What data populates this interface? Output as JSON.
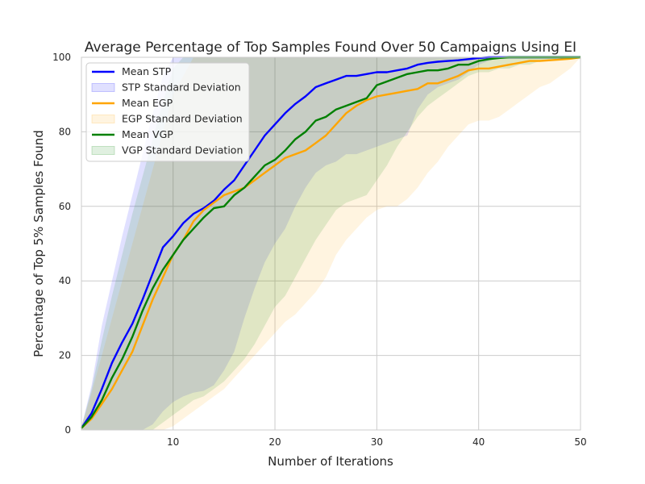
{
  "chart_data": {
    "type": "line",
    "title": "Average Percentage of Top Samples Found Over 50 Campaigns Using EI",
    "xlabel": "Number of Iterations",
    "ylabel": "Percentage of Top 5% Samples Found",
    "xlim": [
      1,
      50
    ],
    "ylim": [
      0,
      100
    ],
    "xticks": [
      10,
      20,
      30,
      40,
      50
    ],
    "yticks": [
      0,
      20,
      40,
      60,
      80,
      100
    ],
    "grid": true,
    "legend_position": "top-left",
    "x": [
      1,
      2,
      3,
      4,
      5,
      6,
      7,
      8,
      9,
      10,
      11,
      12,
      13,
      14,
      15,
      16,
      17,
      18,
      19,
      20,
      21,
      22,
      23,
      24,
      25,
      26,
      27,
      28,
      29,
      30,
      31,
      32,
      33,
      34,
      35,
      36,
      37,
      38,
      39,
      40,
      41,
      42,
      43,
      44,
      45,
      46,
      47,
      48,
      49,
      50
    ],
    "series": [
      {
        "name": "Mean STP",
        "band_name": "STP Standard Deviation",
        "color": "#0000ff",
        "values": [
          0.5,
          4.5,
          11,
          18,
          23.5,
          28.5,
          35,
          42,
          49,
          52,
          55.5,
          58,
          59.5,
          61.5,
          64.5,
          67,
          71,
          75,
          79,
          82,
          85,
          87.5,
          89.5,
          92,
          93,
          94,
          95,
          95,
          95.5,
          96,
          96,
          96.5,
          97,
          98,
          98.5,
          98.8,
          99,
          99.2,
          99.5,
          99.8,
          100,
          100,
          100,
          100,
          100,
          100,
          100,
          100,
          100,
          100
        ],
        "lower": [
          0,
          0,
          0,
          0,
          0,
          0,
          0,
          1.5,
          5,
          7.5,
          9,
          10,
          10.5,
          12,
          16,
          21,
          30,
          38,
          45,
          50,
          54,
          60,
          65,
          69,
          71,
          72,
          74,
          74,
          75,
          76,
          77,
          78,
          79,
          86,
          90,
          92,
          93,
          94,
          96,
          98,
          99,
          100,
          100,
          100,
          100,
          100,
          100,
          100,
          100,
          100
        ],
        "upper": [
          0.8,
          12,
          28,
          40,
          52,
          63,
          74,
          85,
          95,
          100,
          100,
          100,
          100,
          100,
          100,
          100,
          100,
          100,
          100,
          100,
          100,
          100,
          100,
          100,
          100,
          100,
          100,
          100,
          100,
          100,
          100,
          100,
          100,
          100,
          100,
          100,
          100,
          100,
          100,
          100,
          100,
          100,
          100,
          100,
          100,
          100,
          100,
          100,
          100,
          100
        ]
      },
      {
        "name": "Mean EGP",
        "band_name": "EGP Standard Deviation",
        "color": "#ffa500",
        "values": [
          0.5,
          3,
          7,
          11,
          16,
          21,
          28,
          35,
          41,
          47,
          51,
          56,
          59,
          61,
          63,
          64,
          65,
          67,
          69,
          71,
          73,
          74,
          75,
          77,
          79,
          82,
          85,
          87,
          88.5,
          89.5,
          90,
          90.5,
          91,
          91.5,
          93,
          93,
          94,
          95,
          96.5,
          97,
          97,
          97.5,
          98,
          98.5,
          99,
          99,
          99.2,
          99.4,
          99.6,
          100
        ],
        "lower": [
          0,
          0,
          0,
          0,
          0,
          0,
          0,
          0,
          0,
          1,
          3,
          5,
          7,
          9,
          11,
          14,
          17,
          20,
          23,
          26,
          29,
          31,
          34,
          37,
          41,
          47,
          51,
          54,
          57,
          59,
          60,
          60,
          62,
          65,
          69,
          72,
          76,
          79,
          82,
          83,
          83,
          84,
          86,
          88,
          90,
          92,
          93,
          95,
          97,
          100
        ],
        "upper": [
          0.8,
          10,
          20,
          30,
          40,
          50,
          60,
          70,
          80,
          90,
          95,
          100,
          100,
          100,
          100,
          100,
          100,
          100,
          100,
          100,
          100,
          100,
          100,
          100,
          100,
          100,
          100,
          100,
          100,
          100,
          100,
          100,
          100,
          100,
          100,
          100,
          100,
          100,
          100,
          100,
          100,
          100,
          100,
          100,
          100,
          100,
          100,
          100,
          100,
          100
        ]
      },
      {
        "name": "Mean VGP",
        "band_name": "VGP Standard Deviation",
        "color": "#008000",
        "values": [
          0.5,
          3.5,
          8,
          14,
          19,
          25,
          32,
          38,
          43,
          47,
          51,
          54,
          57,
          59.5,
          60,
          63,
          65,
          68,
          71,
          72.5,
          75,
          78,
          80,
          83,
          84,
          86,
          87,
          88,
          89,
          92.5,
          93.5,
          94.5,
          95.5,
          96,
          96.5,
          96.5,
          97,
          98,
          98,
          99,
          99.5,
          99.8,
          100,
          100,
          100,
          100,
          100,
          100,
          100,
          100
        ],
        "lower": [
          0,
          0,
          0,
          0,
          0,
          0,
          0,
          0,
          2,
          4,
          6,
          8,
          9,
          11,
          13,
          16,
          19,
          23,
          28,
          33,
          36,
          41,
          46,
          51,
          55,
          59,
          61,
          62,
          63,
          67,
          71,
          76,
          80,
          84,
          87,
          89,
          91,
          93,
          95,
          96,
          96,
          97,
          97,
          98,
          98,
          99,
          99,
          100,
          100,
          100
        ],
        "upper": [
          0.8,
          11,
          24,
          36,
          47,
          58,
          68,
          78,
          88,
          97,
          100,
          100,
          100,
          100,
          100,
          100,
          100,
          100,
          100,
          100,
          100,
          100,
          100,
          100,
          100,
          100,
          100,
          100,
          100,
          100,
          100,
          100,
          100,
          100,
          100,
          100,
          100,
          100,
          100,
          100,
          100,
          100,
          100,
          100,
          100,
          100,
          100,
          100,
          100,
          100
        ]
      }
    ]
  }
}
